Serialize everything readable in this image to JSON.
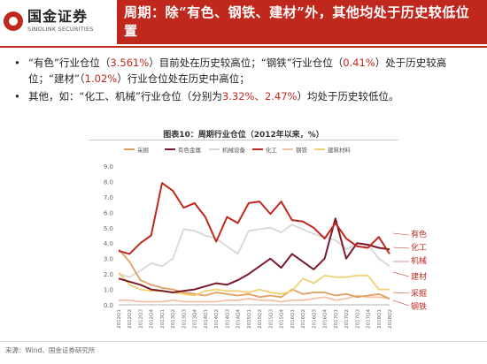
{
  "header": {
    "logo_cn": "国金证券",
    "logo_en": "SINOLINK SECURITIES",
    "title": "周期：除“有色、钢铁、建材”外，其他均处于历史较低位置"
  },
  "bullets": [
    {
      "p1": "“有色”行业仓位（",
      "v1": "3.561%",
      "p2": "）目前处在历史较高位；“钢铁”行业仓位（",
      "v2": "0.41%",
      "p3": "）处于历史较高位；“建材”（",
      "v3": "1.02%",
      "p4": "）行业仓位处在历史中高位；"
    },
    {
      "p1": "其他，如：“化工、机械”行业仓位（分别为",
      "v1": "3.32%、2.47%",
      "p2": "）均处于历史较低位。"
    }
  ],
  "source": "来源：Wind、国金证券研究所",
  "colors": {
    "brand_red": "#c0281e"
  },
  "chart_data": {
    "type": "line",
    "title": "图表10：周期行业仓位（2012年以来，%）",
    "x": [
      "2012Q1",
      "2012Q2",
      "2012Q3",
      "2012Q4",
      "2013Q1",
      "2013Q2",
      "2013Q3",
      "2013Q4",
      "2014Q1",
      "2014Q2",
      "2014Q3",
      "2014Q4",
      "2015Q1",
      "2015Q2",
      "2015Q3",
      "2015Q4",
      "2016Q1",
      "2016Q2",
      "2016Q3",
      "2016Q4",
      "2017Q1",
      "2017Q2",
      "2017Q3",
      "2017Q4",
      "2018Q1",
      "2018Q2"
    ],
    "ylim": [
      0,
      9
    ],
    "yticks": [
      "0.0",
      "1.0",
      "2.0",
      "3.0",
      "4.0",
      "5.0",
      "6.0",
      "7.0",
      "8.0",
      "9.0"
    ],
    "series": [
      {
        "name": "采掘",
        "color": "#e0a060",
        "values": [
          3.6,
          2.8,
          1.6,
          1.3,
          1.1,
          1.0,
          0.8,
          0.7,
          0.6,
          0.8,
          0.7,
          0.6,
          0.7,
          0.5,
          0.6,
          0.5,
          1.0,
          0.7,
          0.8,
          0.8,
          0.6,
          0.7,
          0.5,
          0.6,
          0.7,
          0.4
        ]
      },
      {
        "name": "有色金属",
        "color": "#7a1a2a",
        "values": [
          1.7,
          1.5,
          1.3,
          1.0,
          0.9,
          0.8,
          0.9,
          1.0,
          1.2,
          1.4,
          1.3,
          1.6,
          2.0,
          2.5,
          3.0,
          2.4,
          3.3,
          2.8,
          2.3,
          3.0,
          5.6,
          3.0,
          4.0,
          3.9,
          3.7,
          3.6
        ]
      },
      {
        "name": "机械设备",
        "color": "#d7d7d7",
        "values": [
          2.0,
          1.8,
          2.2,
          2.7,
          2.5,
          3.0,
          4.9,
          4.8,
          4.5,
          4.3,
          3.8,
          3.3,
          4.8,
          4.9,
          5.0,
          4.7,
          5.2,
          4.9,
          4.6,
          4.4,
          4.2,
          3.6,
          4.0,
          3.9,
          3.0,
          2.5
        ]
      },
      {
        "name": "化工",
        "color": "#c0281e",
        "values": [
          3.5,
          3.3,
          4.0,
          4.5,
          7.9,
          7.4,
          6.3,
          6.6,
          5.7,
          4.1,
          5.7,
          5.3,
          6.6,
          6.7,
          5.9,
          6.7,
          5.5,
          5.4,
          5.0,
          4.3,
          5.3,
          4.3,
          3.8,
          3.7,
          4.4,
          3.3
        ]
      },
      {
        "name": "钢铁",
        "color": "#f2c2a8",
        "values": [
          0.3,
          0.3,
          0.2,
          0.2,
          0.2,
          0.3,
          0.2,
          0.2,
          0.2,
          0.2,
          0.3,
          0.3,
          0.4,
          0.3,
          0.3,
          0.2,
          0.3,
          0.3,
          0.4,
          0.5,
          0.3,
          0.4,
          0.6,
          0.5,
          0.5,
          0.4
        ]
      },
      {
        "name": "建筑材料",
        "color": "#f0d070",
        "values": [
          2.1,
          1.3,
          1.0,
          0.9,
          0.9,
          0.8,
          0.7,
          0.6,
          0.9,
          1.0,
          0.9,
          0.9,
          0.8,
          1.0,
          0.8,
          0.7,
          0.9,
          1.7,
          1.4,
          1.9,
          1.8,
          1.8,
          1.9,
          1.9,
          1.0,
          1.0
        ]
      }
    ],
    "end_labels": [
      "有色",
      "化工",
      "机械",
      "建材",
      "采掘",
      "钢铁"
    ],
    "legend_placement": "top",
    "grid": false
  }
}
